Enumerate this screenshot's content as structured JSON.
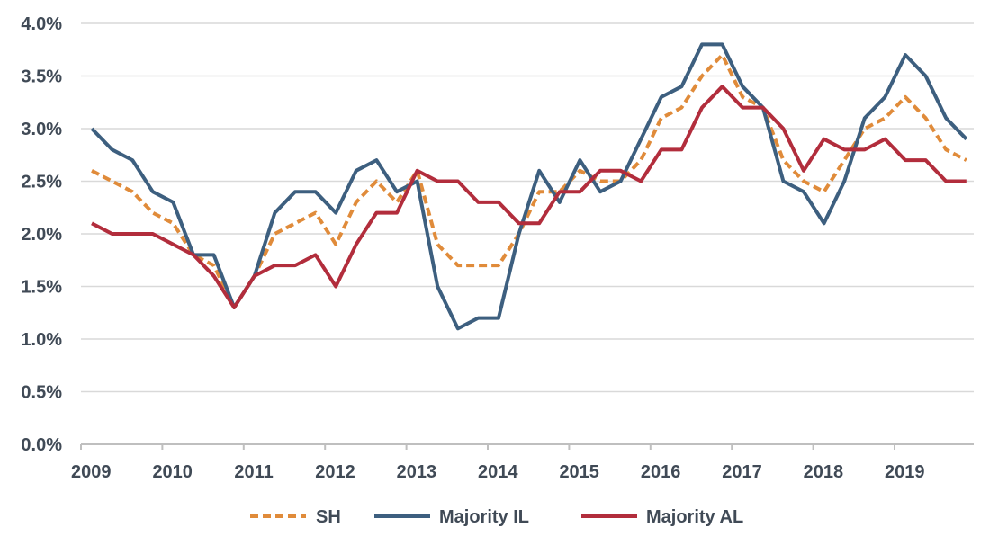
{
  "chart_data": {
    "type": "line",
    "title": "",
    "xlabel": "",
    "ylabel": "",
    "ylim": [
      0,
      4.0
    ],
    "y_ticks": [
      "0.0%",
      "0.5%",
      "1.0%",
      "1.5%",
      "2.0%",
      "2.5%",
      "3.0%",
      "3.5%",
      "4.0%"
    ],
    "x_ticks": [
      "2009",
      "2010",
      "2011",
      "2012",
      "2013",
      "2014",
      "2015",
      "2016",
      "2017",
      "2018",
      "2019"
    ],
    "grid": "horizontal",
    "legend_position": "bottom",
    "x": [
      "2009 Q1",
      "2009 Q2",
      "2009 Q3",
      "2009 Q4",
      "2010 Q1",
      "2010 Q2",
      "2010 Q3",
      "2010 Q4",
      "2011 Q1",
      "2011 Q2",
      "2011 Q3",
      "2011 Q4",
      "2012 Q1",
      "2012 Q2",
      "2012 Q3",
      "2012 Q4",
      "2013 Q1",
      "2013 Q2",
      "2013 Q3",
      "2013 Q4",
      "2014 Q1",
      "2014 Q2",
      "2014 Q3",
      "2014 Q4",
      "2015 Q1",
      "2015 Q2",
      "2015 Q3",
      "2015 Q4",
      "2016 Q1",
      "2016 Q2",
      "2016 Q3",
      "2016 Q4",
      "2017 Q1",
      "2017 Q2",
      "2017 Q3",
      "2017 Q4",
      "2018 Q1",
      "2018 Q2",
      "2018 Q3",
      "2018 Q4",
      "2019 Q1",
      "2019 Q2",
      "2019 Q3",
      "2019 Q4"
    ],
    "series": [
      {
        "name": "SH",
        "color": "#e08b3a",
        "style": "dashed",
        "values": [
          2.6,
          2.5,
          2.4,
          2.2,
          2.1,
          1.8,
          1.7,
          1.3,
          1.6,
          2.0,
          2.1,
          2.2,
          1.9,
          2.3,
          2.5,
          2.3,
          2.6,
          1.9,
          1.7,
          1.7,
          1.7,
          2.0,
          2.4,
          2.4,
          2.6,
          2.5,
          2.5,
          2.7,
          3.1,
          3.2,
          3.5,
          3.7,
          3.3,
          3.2,
          2.7,
          2.5,
          2.4,
          2.7,
          3.0,
          3.1,
          3.3,
          3.1,
          2.8,
          2.7
        ]
      },
      {
        "name": "Majority IL",
        "color": "#3d5f7f",
        "style": "solid",
        "values": [
          3.0,
          2.8,
          2.7,
          2.4,
          2.3,
          1.8,
          1.8,
          1.3,
          1.6,
          2.2,
          2.4,
          2.4,
          2.2,
          2.6,
          2.7,
          2.4,
          2.5,
          1.5,
          1.1,
          1.2,
          1.2,
          2.0,
          2.6,
          2.3,
          2.7,
          2.4,
          2.5,
          2.9,
          3.3,
          3.4,
          3.8,
          3.8,
          3.4,
          3.2,
          2.5,
          2.4,
          2.1,
          2.5,
          3.1,
          3.3,
          3.7,
          3.5,
          3.1,
          2.9
        ]
      },
      {
        "name": "Majority AL",
        "color": "#b22d3c",
        "style": "solid",
        "values": [
          2.1,
          2.0,
          2.0,
          2.0,
          1.9,
          1.8,
          1.6,
          1.3,
          1.6,
          1.7,
          1.7,
          1.8,
          1.5,
          1.9,
          2.2,
          2.2,
          2.6,
          2.5,
          2.5,
          2.3,
          2.3,
          2.1,
          2.1,
          2.4,
          2.4,
          2.6,
          2.6,
          2.5,
          2.8,
          2.8,
          3.2,
          3.4,
          3.2,
          3.2,
          3.0,
          2.6,
          2.9,
          2.8,
          2.8,
          2.9,
          2.7,
          2.7,
          2.5,
          2.5
        ]
      }
    ]
  }
}
